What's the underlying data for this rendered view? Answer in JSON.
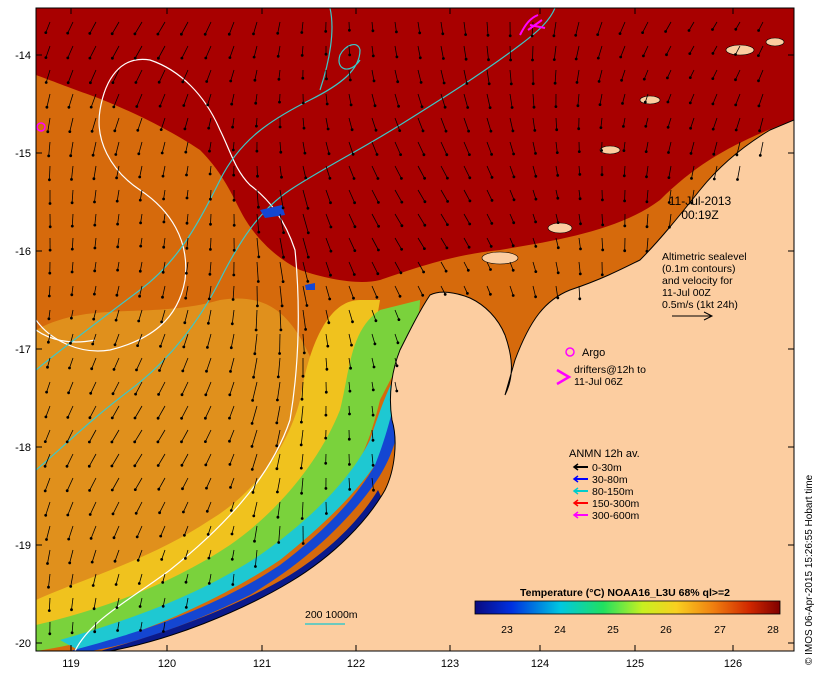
{
  "map": {
    "lat_ticks": [
      "-14",
      "-15",
      "-16",
      "-17",
      "-18",
      "-19",
      "-20"
    ],
    "lon_ticks": [
      "119",
      "120",
      "121",
      "122",
      "123",
      "124",
      "125",
      "126"
    ],
    "date_line1": "11-Jul-2013",
    "date_line2": "00:19Z",
    "altimetry_lines": [
      "Altimetric sealevel",
      "(0.1m contours)",
      "and velocity for",
      "11-Jul 00Z",
      "0.5m/s (1kt 24h)"
    ],
    "argo_label": "Argo",
    "drifters_lines": [
      "drifters@12h to",
      "11-Jul 06Z"
    ],
    "anmn_title": "ANMN 12h av.",
    "anmn_legend": [
      {
        "label": "0-30m",
        "color": "#000000"
      },
      {
        "label": "30-80m",
        "color": "#0000ff"
      },
      {
        "label": "80-150m",
        "color": "#00cccc"
      },
      {
        "label": "150-300m",
        "color": "#ff0000"
      },
      {
        "label": "300-600m",
        "color": "#ff00ff"
      }
    ],
    "isobath_label": "200  1000m",
    "colorbar_title": "Temperature (°C) NOAA16_L3U 68% ql>=2",
    "colorbar_ticks": [
      "23",
      "24",
      "25",
      "26",
      "27",
      "28"
    ],
    "credit": "© IMOS 06-Apr-2015 15:26:55 Hobart time",
    "colors": {
      "land": "#fccda0",
      "warm_sea": "#a80000",
      "mid_sea": "#d25a0a",
      "orange_sea": "#e8961a",
      "yellow_sea": "#f0c81e",
      "green_sea": "#7ad23c",
      "cyan_sea": "#1ec8d2",
      "blue_sea": "#1446d2",
      "deep_blue": "#0a1a8c",
      "contour": "#ffffff",
      "isobath": "#3cc8c8",
      "marker": "#ff00ff"
    }
  }
}
